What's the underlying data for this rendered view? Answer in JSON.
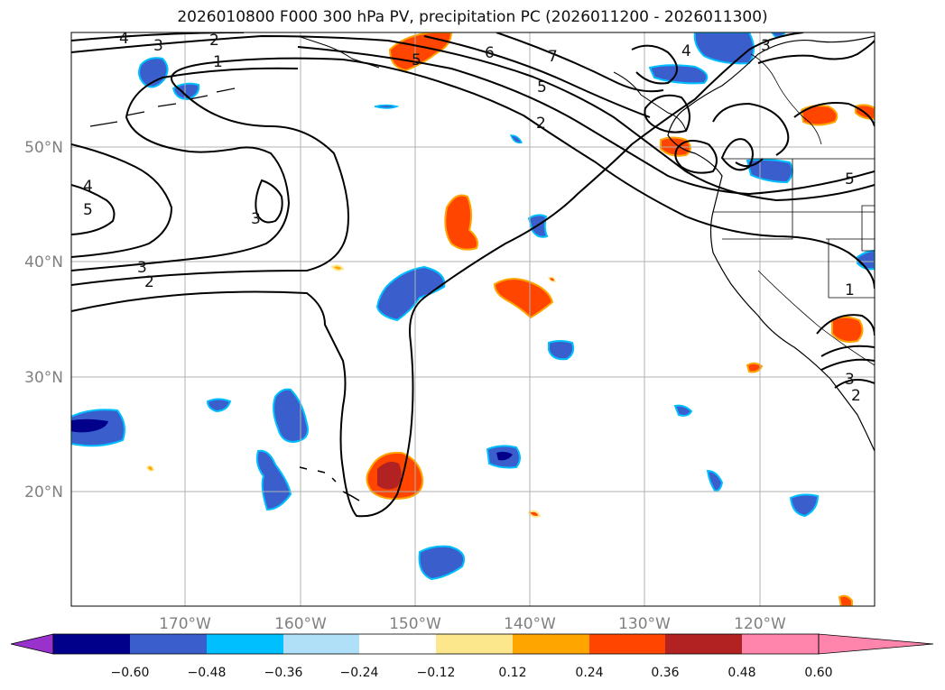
{
  "title": "2026010800 F000 300 hPa PV, precipitation PC (2026011200 - 2026011300)",
  "lon_ticks": [
    "170°W",
    "160°W",
    "150°W",
    "140°W",
    "130°W",
    "120°W"
  ],
  "lat_ticks": [
    "50°N",
    "40°N",
    "30°N",
    "20°N"
  ],
  "colorbar": {
    "ticks": [
      "−0.60",
      "−0.48",
      "−0.36",
      "−0.24",
      "−0.12",
      "0.12",
      "0.24",
      "0.36",
      "0.48",
      "0.60"
    ],
    "colors": [
      "#9932cc",
      "#00008b",
      "#3a5fcd",
      "#00bfff",
      "#b0e0f8",
      "#ffffff",
      "#fde78c",
      "#ffa500",
      "#ff4500",
      "#b22222",
      "#ff85ad"
    ]
  },
  "contour_labels": [
    "4",
    "3",
    "2",
    "1",
    "6",
    "7",
    "5",
    "2",
    "4",
    "3",
    "5",
    "4",
    "5",
    "3",
    "2",
    "3",
    "1",
    "3",
    "2"
  ]
}
